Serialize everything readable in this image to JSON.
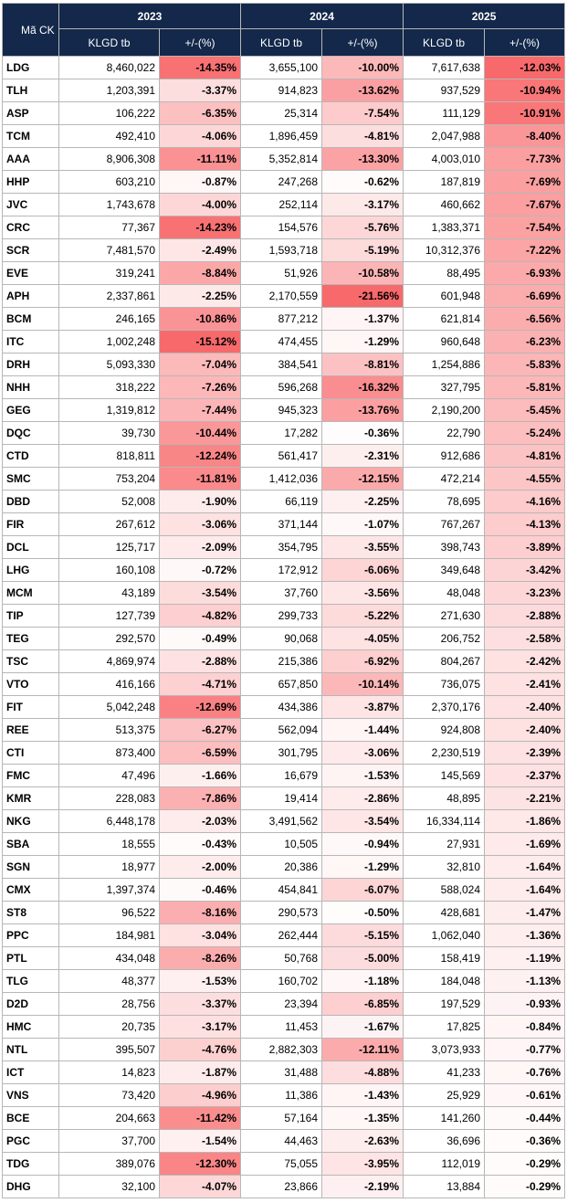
{
  "header": {
    "ticker_label": "Mã CK",
    "years": [
      "2023",
      "2024",
      "2025"
    ],
    "vol_label": "KLGD tb",
    "chg_label": "+/-(%)"
  },
  "colors": {
    "header_bg": "#13284a",
    "negative_strong": "#f8696b",
    "neutral": "#ffffff"
  },
  "rows": [
    {
      "t": "LDG",
      "v1": "8,460,022",
      "p1": "-14.35%",
      "v2": "3,655,100",
      "p2": "-10.00%",
      "v3": "7,617,638",
      "p3": "-12.03%"
    },
    {
      "t": "TLH",
      "v1": "1,203,391",
      "p1": "-3.37%",
      "v2": "914,823",
      "p2": "-13.62%",
      "v3": "937,529",
      "p3": "-10.94%"
    },
    {
      "t": "ASP",
      "v1": "106,222",
      "p1": "-6.35%",
      "v2": "25,314",
      "p2": "-7.54%",
      "v3": "111,129",
      "p3": "-10.91%"
    },
    {
      "t": "TCM",
      "v1": "492,410",
      "p1": "-4.06%",
      "v2": "1,896,459",
      "p2": "-4.81%",
      "v3": "2,047,988",
      "p3": "-8.40%"
    },
    {
      "t": "AAA",
      "v1": "8,906,308",
      "p1": "-11.11%",
      "v2": "5,352,814",
      "p2": "-13.30%",
      "v3": "4,003,010",
      "p3": "-7.73%"
    },
    {
      "t": "HHP",
      "v1": "603,210",
      "p1": "-0.87%",
      "v2": "247,268",
      "p2": "-0.62%",
      "v3": "187,819",
      "p3": "-7.69%"
    },
    {
      "t": "JVC",
      "v1": "1,743,678",
      "p1": "-4.00%",
      "v2": "252,114",
      "p2": "-3.17%",
      "v3": "460,662",
      "p3": "-7.67%"
    },
    {
      "t": "CRC",
      "v1": "77,367",
      "p1": "-14.23%",
      "v2": "154,576",
      "p2": "-5.76%",
      "v3": "1,383,371",
      "p3": "-7.54%"
    },
    {
      "t": "SCR",
      "v1": "7,481,570",
      "p1": "-2.49%",
      "v2": "1,593,718",
      "p2": "-5.19%",
      "v3": "10,312,376",
      "p3": "-7.22%"
    },
    {
      "t": "EVE",
      "v1": "319,241",
      "p1": "-8.84%",
      "v2": "51,926",
      "p2": "-10.58%",
      "v3": "88,495",
      "p3": "-6.93%"
    },
    {
      "t": "APH",
      "v1": "2,337,861",
      "p1": "-2.25%",
      "v2": "2,170,559",
      "p2": "-21.56%",
      "v3": "601,948",
      "p3": "-6.69%"
    },
    {
      "t": "BCM",
      "v1": "246,165",
      "p1": "-10.86%",
      "v2": "877,212",
      "p2": "-1.37%",
      "v3": "621,814",
      "p3": "-6.56%"
    },
    {
      "t": "ITC",
      "v1": "1,002,248",
      "p1": "-15.12%",
      "v2": "474,455",
      "p2": "-1.29%",
      "v3": "960,648",
      "p3": "-6.23%"
    },
    {
      "t": "DRH",
      "v1": "5,093,330",
      "p1": "-7.04%",
      "v2": "384,541",
      "p2": "-8.81%",
      "v3": "1,254,886",
      "p3": "-5.83%"
    },
    {
      "t": "NHH",
      "v1": "318,222",
      "p1": "-7.26%",
      "v2": "596,268",
      "p2": "-16.32%",
      "v3": "327,795",
      "p3": "-5.81%"
    },
    {
      "t": "GEG",
      "v1": "1,319,812",
      "p1": "-7.44%",
      "v2": "945,323",
      "p2": "-13.76%",
      "v3": "2,190,200",
      "p3": "-5.45%"
    },
    {
      "t": "DQC",
      "v1": "39,730",
      "p1": "-10.44%",
      "v2": "17,282",
      "p2": "-0.36%",
      "v3": "22,790",
      "p3": "-5.24%"
    },
    {
      "t": "CTD",
      "v1": "818,811",
      "p1": "-12.24%",
      "v2": "561,417",
      "p2": "-2.31%",
      "v3": "912,686",
      "p3": "-4.81%"
    },
    {
      "t": "SMC",
      "v1": "753,204",
      "p1": "-11.81%",
      "v2": "1,412,036",
      "p2": "-12.15%",
      "v3": "472,214",
      "p3": "-4.55%"
    },
    {
      "t": "DBD",
      "v1": "52,008",
      "p1": "-1.90%",
      "v2": "66,119",
      "p2": "-2.25%",
      "v3": "78,695",
      "p3": "-4.16%"
    },
    {
      "t": "FIR",
      "v1": "267,612",
      "p1": "-3.06%",
      "v2": "371,144",
      "p2": "-1.07%",
      "v3": "767,267",
      "p3": "-4.13%"
    },
    {
      "t": "DCL",
      "v1": "125,717",
      "p1": "-2.09%",
      "v2": "354,795",
      "p2": "-3.55%",
      "v3": "398,743",
      "p3": "-3.89%"
    },
    {
      "t": "LHG",
      "v1": "160,108",
      "p1": "-0.72%",
      "v2": "172,912",
      "p2": "-6.06%",
      "v3": "349,648",
      "p3": "-3.42%"
    },
    {
      "t": "MCM",
      "v1": "43,189",
      "p1": "-3.54%",
      "v2": "37,760",
      "p2": "-3.56%",
      "v3": "48,048",
      "p3": "-3.23%"
    },
    {
      "t": "TIP",
      "v1": "127,739",
      "p1": "-4.82%",
      "v2": "299,733",
      "p2": "-5.22%",
      "v3": "271,630",
      "p3": "-2.88%"
    },
    {
      "t": "TEG",
      "v1": "292,570",
      "p1": "-0.49%",
      "v2": "90,068",
      "p2": "-4.05%",
      "v3": "206,752",
      "p3": "-2.58%"
    },
    {
      "t": "TSC",
      "v1": "4,869,974",
      "p1": "-2.88%",
      "v2": "215,386",
      "p2": "-6.92%",
      "v3": "804,267",
      "p3": "-2.42%"
    },
    {
      "t": "VTO",
      "v1": "416,166",
      "p1": "-4.71%",
      "v2": "657,850",
      "p2": "-10.14%",
      "v3": "736,075",
      "p3": "-2.41%"
    },
    {
      "t": "FIT",
      "v1": "5,042,248",
      "p1": "-12.69%",
      "v2": "434,386",
      "p2": "-3.87%",
      "v3": "2,370,176",
      "p3": "-2.40%"
    },
    {
      "t": "REE",
      "v1": "513,375",
      "p1": "-6.27%",
      "v2": "562,094",
      "p2": "-1.44%",
      "v3": "924,808",
      "p3": "-2.40%"
    },
    {
      "t": "CTI",
      "v1": "873,400",
      "p1": "-6.59%",
      "v2": "301,795",
      "p2": "-3.06%",
      "v3": "2,230,519",
      "p3": "-2.39%"
    },
    {
      "t": "FMC",
      "v1": "47,496",
      "p1": "-1.66%",
      "v2": "16,679",
      "p2": "-1.53%",
      "v3": "145,569",
      "p3": "-2.37%"
    },
    {
      "t": "KMR",
      "v1": "228,083",
      "p1": "-7.86%",
      "v2": "19,414",
      "p2": "-2.86%",
      "v3": "48,895",
      "p3": "-2.21%"
    },
    {
      "t": "NKG",
      "v1": "6,448,178",
      "p1": "-2.03%",
      "v2": "3,491,562",
      "p2": "-3.54%",
      "v3": "16,334,114",
      "p3": "-1.86%"
    },
    {
      "t": "SBA",
      "v1": "18,555",
      "p1": "-0.43%",
      "v2": "10,505",
      "p2": "-0.94%",
      "v3": "27,931",
      "p3": "-1.69%"
    },
    {
      "t": "SGN",
      "v1": "18,977",
      "p1": "-2.00%",
      "v2": "20,386",
      "p2": "-1.29%",
      "v3": "32,810",
      "p3": "-1.64%"
    },
    {
      "t": "CMX",
      "v1": "1,397,374",
      "p1": "-0.46%",
      "v2": "454,841",
      "p2": "-6.07%",
      "v3": "588,024",
      "p3": "-1.64%"
    },
    {
      "t": "ST8",
      "v1": "96,522",
      "p1": "-8.16%",
      "v2": "290,573",
      "p2": "-0.50%",
      "v3": "428,681",
      "p3": "-1.47%"
    },
    {
      "t": "PPC",
      "v1": "184,981",
      "p1": "-3.04%",
      "v2": "262,444",
      "p2": "-5.15%",
      "v3": "1,062,040",
      "p3": "-1.36%"
    },
    {
      "t": "PTL",
      "v1": "434,048",
      "p1": "-8.26%",
      "v2": "50,768",
      "p2": "-5.00%",
      "v3": "158,419",
      "p3": "-1.19%"
    },
    {
      "t": "TLG",
      "v1": "48,377",
      "p1": "-1.53%",
      "v2": "160,702",
      "p2": "-1.18%",
      "v3": "184,048",
      "p3": "-1.13%"
    },
    {
      "t": "D2D",
      "v1": "28,756",
      "p1": "-3.37%",
      "v2": "23,394",
      "p2": "-6.85%",
      "v3": "197,529",
      "p3": "-0.93%"
    },
    {
      "t": "HMC",
      "v1": "20,735",
      "p1": "-3.17%",
      "v2": "11,453",
      "p2": "-1.67%",
      "v3": "17,825",
      "p3": "-0.84%"
    },
    {
      "t": "NTL",
      "v1": "395,507",
      "p1": "-4.76%",
      "v2": "2,882,303",
      "p2": "-12.11%",
      "v3": "3,073,933",
      "p3": "-0.77%"
    },
    {
      "t": "ICT",
      "v1": "14,823",
      "p1": "-1.87%",
      "v2": "31,488",
      "p2": "-4.88%",
      "v3": "41,233",
      "p3": "-0.76%"
    },
    {
      "t": "VNS",
      "v1": "73,420",
      "p1": "-4.96%",
      "v2": "11,386",
      "p2": "-1.43%",
      "v3": "25,929",
      "p3": "-0.61%"
    },
    {
      "t": "BCE",
      "v1": "204,663",
      "p1": "-11.42%",
      "v2": "57,164",
      "p2": "-1.35%",
      "v3": "141,260",
      "p3": "-0.44%"
    },
    {
      "t": "PGC",
      "v1": "37,700",
      "p1": "-1.54%",
      "v2": "44,463",
      "p2": "-2.63%",
      "v3": "36,696",
      "p3": "-0.36%"
    },
    {
      "t": "TDG",
      "v1": "389,076",
      "p1": "-12.30%",
      "v2": "75,055",
      "p2": "-3.95%",
      "v3": "112,019",
      "p3": "-0.29%"
    },
    {
      "t": "DHG",
      "v1": "32,100",
      "p1": "-4.07%",
      "v2": "23,866",
      "p2": "-2.19%",
      "v3": "13,884",
      "p3": "-0.29%"
    }
  ]
}
